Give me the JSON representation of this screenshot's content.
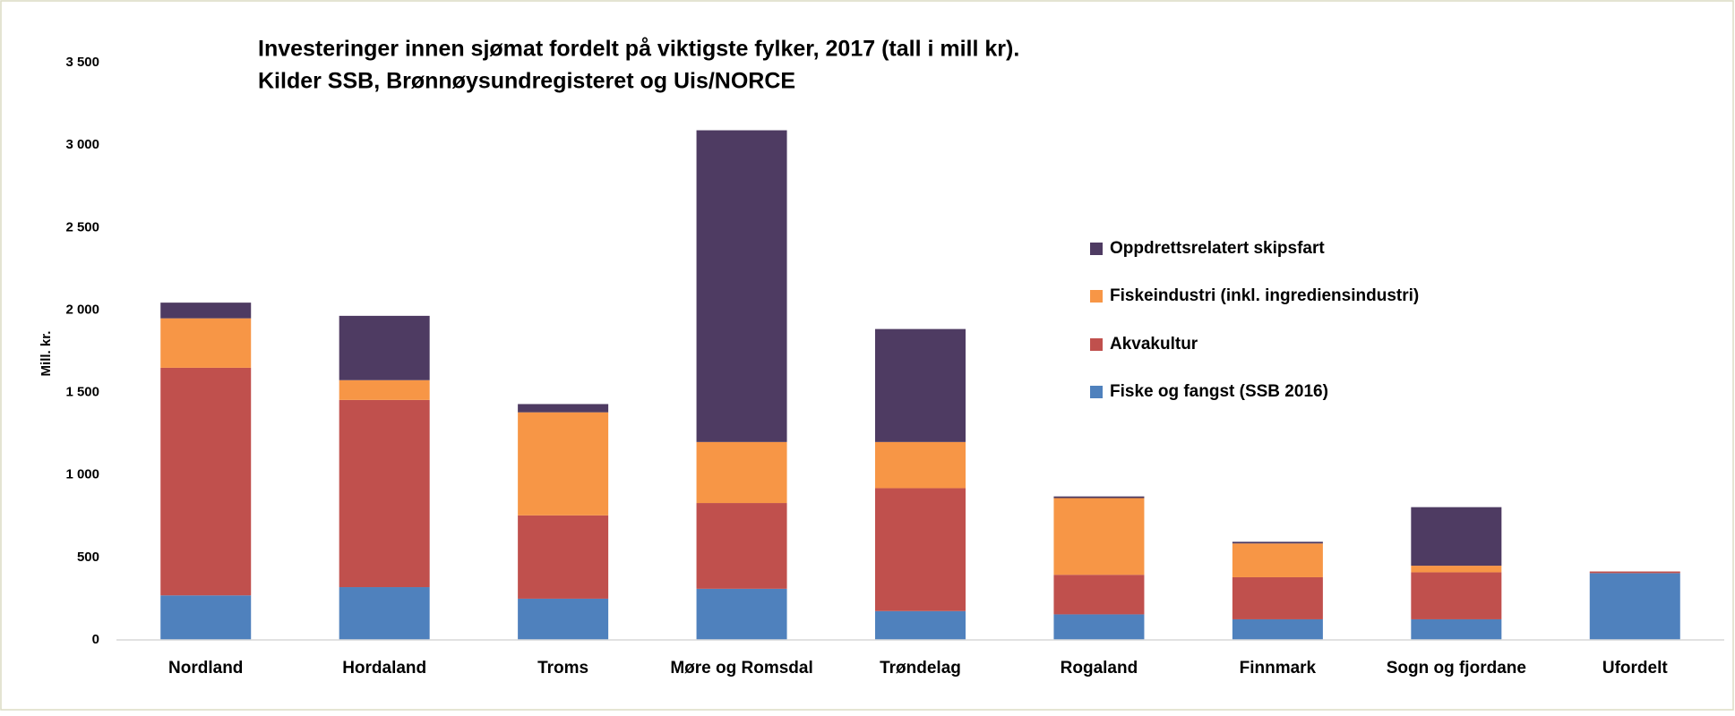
{
  "chart_data": {
    "type": "stacked_bar",
    "title": "Investeringer innen sjømat fordelt på viktigste fylker, 2017 (tall i mill kr).",
    "subtitle": "Kilder SSB, Brønnøysundregisteret og Uis/NORCE",
    "y_label": "Mill. kr.",
    "categories": [
      "Nordland",
      "Hordaland",
      "Troms",
      "Møre og Romsdal",
      "Trøndelag",
      "Rogaland",
      "Finnmark",
      "Sogn og fjordane",
      "Ufordelt"
    ],
    "series": [
      {
        "name": "Fiske og fangst (SSB 2016)",
        "color": "#4f81bd",
        "values": [
          270,
          320,
          250,
          310,
          175,
          155,
          125,
          125,
          405
        ]
      },
      {
        "name": "Akvakultur",
        "color": "#c0504d",
        "values": [
          1380,
          1135,
          505,
          520,
          745,
          240,
          255,
          285,
          10
        ]
      },
      {
        "name": "Fiskeindustri (inkl. ingrediensindustri)",
        "color": "#f79646",
        "values": [
          300,
          120,
          625,
          370,
          280,
          465,
          205,
          40,
          0
        ]
      },
      {
        "name": "Oppdrettsrelatert skipsfart",
        "color": "#4e3b62",
        "values": [
          95,
          390,
          50,
          1890,
          685,
          10,
          10,
          355,
          0
        ]
      }
    ],
    "ylim": [
      0,
      3500
    ],
    "yticks": [
      0,
      500,
      {
        "value": 1000,
        "label": "1 000"
      },
      {
        "value": 1500,
        "label": "1 500"
      },
      {
        "value": 2000,
        "label": "2 000"
      },
      {
        "value": 2500,
        "label": "2 500"
      },
      {
        "value": 3000,
        "label": "3 000"
      },
      {
        "value": 3500,
        "label": "3 500"
      }
    ],
    "legend": "right",
    "grid": false
  }
}
